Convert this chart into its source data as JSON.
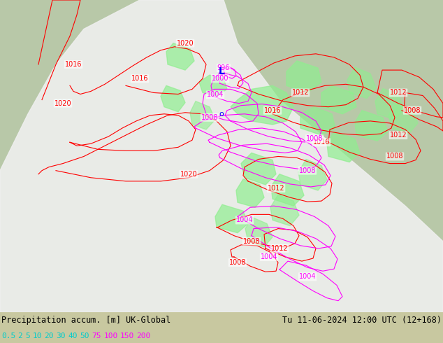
{
  "title_left": "Precipitation accum. [m] UK-Global",
  "title_right": "Tu 11-06-2024 12:00 UTC (12+168)",
  "legend_values": [
    "0.5",
    "2",
    "5",
    "10",
    "20",
    "30",
    "40",
    "50",
    "75",
    "100",
    "150",
    "200"
  ],
  "legend_colors": [
    "#00ffff",
    "#00ffff",
    "#00ffff",
    "#00ffff",
    "#00ffff",
    "#00ffff",
    "#00ffff",
    "#00ffff",
    "#ff00ff",
    "#ff00ff",
    "#ff00ff",
    "#ff00ff"
  ],
  "bg_color": "#ffffff",
  "bottom_bar_color": "#d3d3d3",
  "map_bg": "#c8d8a0",
  "sea_color": "#b0c4de",
  "forecast_area_color": "#e8e8e8",
  "green_precip_color": "#90ee90",
  "contour_color_red": "#ff0000",
  "contour_color_magenta": "#ff00ff",
  "label_font_size": 9,
  "title_font_size": 9
}
